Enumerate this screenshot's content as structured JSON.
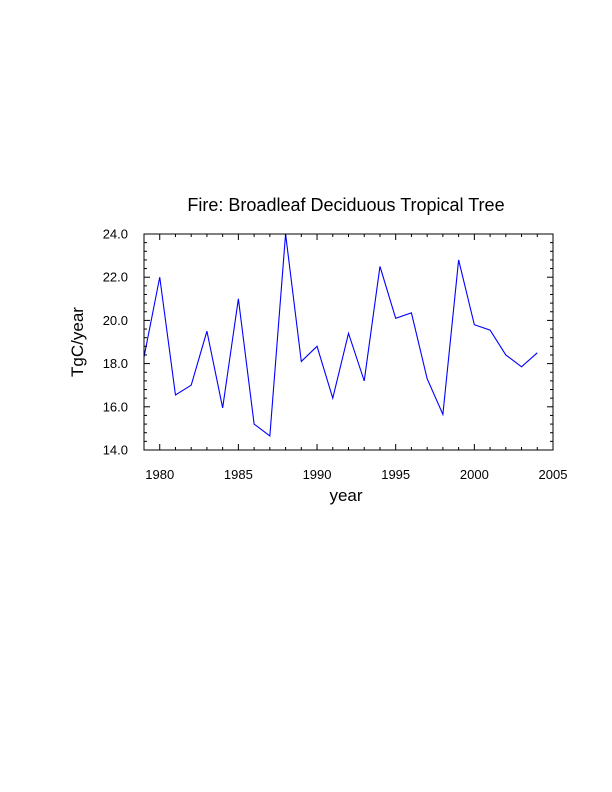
{
  "chart_data": {
    "type": "line",
    "title": "Fire: Broadleaf Deciduous Tropical Tree",
    "xlabel": "year",
    "ylabel": "TgC/year",
    "xlim": [
      1979,
      2005
    ],
    "ylim": [
      14.0,
      24.0
    ],
    "xticks": [
      1980,
      1985,
      1990,
      1995,
      2000,
      2005
    ],
    "xtick_labels": [
      "1980",
      "1985",
      "1990",
      "1995",
      "2000",
      "2005"
    ],
    "yticks": [
      14.0,
      16.0,
      18.0,
      20.0,
      22.0,
      24.0
    ],
    "ytick_labels": [
      "14.0",
      "16.0",
      "18.0",
      "20.0",
      "22.0",
      "24.0"
    ],
    "grid": false,
    "line_color": "#0000ff",
    "series": [
      {
        "x": [
          1979,
          1980,
          1981,
          1982,
          1983,
          1984,
          1985,
          1986,
          1987,
          1988,
          1989,
          1990,
          1991,
          1992,
          1993,
          1994,
          1995,
          1996,
          1997,
          1998,
          1999,
          2000,
          2001,
          2002,
          2003,
          2004
        ],
        "values": [
          18.3,
          22.0,
          16.55,
          17.0,
          19.5,
          15.95,
          21.0,
          15.2,
          14.65,
          24.0,
          18.1,
          18.8,
          16.4,
          19.4,
          17.2,
          22.5,
          20.1,
          20.35,
          17.3,
          15.65,
          22.8,
          19.8,
          19.55,
          18.4,
          17.85,
          18.5
        ]
      }
    ]
  }
}
